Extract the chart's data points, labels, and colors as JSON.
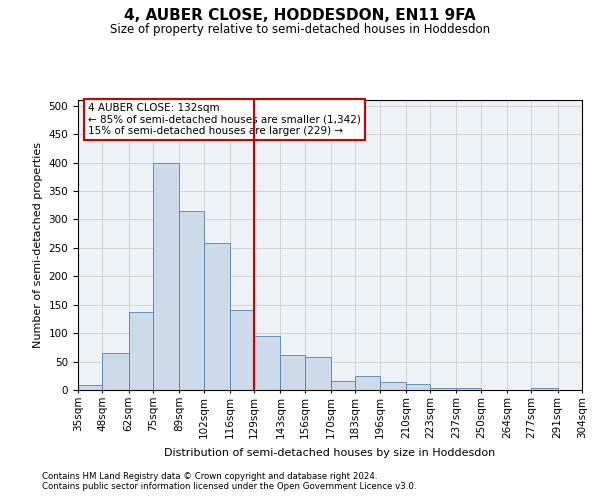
{
  "title": "4, AUBER CLOSE, HODDESDON, EN11 9FA",
  "subtitle": "Size of property relative to semi-detached houses in Hoddesdon",
  "xlabel": "Distribution of semi-detached houses by size in Hoddesdon",
  "ylabel": "Number of semi-detached properties",
  "footnote1": "Contains HM Land Registry data © Crown copyright and database right 2024.",
  "footnote2": "Contains public sector information licensed under the Open Government Licence v3.0.",
  "annotation_title": "4 AUBER CLOSE: 132sqm",
  "annotation_line1": "← 85% of semi-detached houses are smaller (1,342)",
  "annotation_line2": "15% of semi-detached houses are larger (229) →",
  "property_size": 132,
  "bin_edges": [
    35,
    48,
    62,
    75,
    89,
    102,
    116,
    129,
    143,
    156,
    170,
    183,
    196,
    210,
    223,
    237,
    250,
    264,
    277,
    291,
    304
  ],
  "bin_labels": [
    "35sqm",
    "48sqm",
    "62sqm",
    "75sqm",
    "89sqm",
    "102sqm",
    "116sqm",
    "129sqm",
    "143sqm",
    "156sqm",
    "170sqm",
    "183sqm",
    "196sqm",
    "210sqm",
    "223sqm",
    "237sqm",
    "250sqm",
    "264sqm",
    "277sqm",
    "291sqm",
    "304sqm"
  ],
  "bar_heights": [
    8,
    65,
    137,
    400,
    315,
    258,
    140,
    95,
    62,
    58,
    15,
    25,
    14,
    10,
    4,
    4,
    0,
    0,
    4,
    0,
    0
  ],
  "bar_color": "#cddaea",
  "bar_edge_color": "#5580aa",
  "vline_color": "#cc0000",
  "vline_x": 129,
  "ylim": [
    0,
    510
  ],
  "yticks": [
    0,
    50,
    100,
    150,
    200,
    250,
    300,
    350,
    400,
    450,
    500
  ],
  "bg_color": "#edf2f7",
  "grid_color": "#c8c8c8",
  "annotation_box_color": "#ffffff",
  "annotation_box_edge": "#cc0000",
  "title_fontsize": 11,
  "subtitle_fontsize": 8.5,
  "ylabel_fontsize": 8,
  "xlabel_fontsize": 8,
  "tick_fontsize": 7.5,
  "annot_fontsize": 7.5,
  "footnote_fontsize": 6.2
}
